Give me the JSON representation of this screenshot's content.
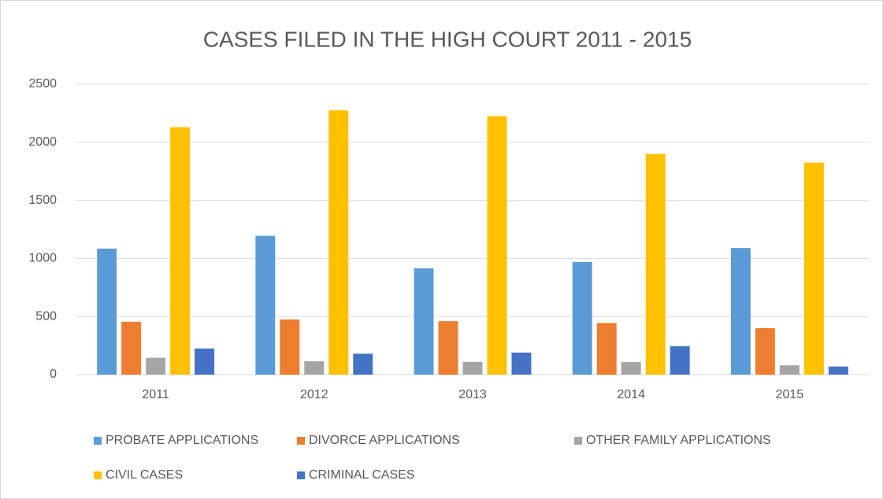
{
  "chart_data": {
    "type": "bar",
    "title": "CASES FILED IN THE HIGH COURT 2011 - 2015",
    "categories": [
      "2011",
      "2012",
      "2013",
      "2014",
      "2015"
    ],
    "series": [
      {
        "name": "PROBATE APPLICATIONS",
        "color": "#5b9bd5",
        "values": [
          1085,
          1195,
          915,
          970,
          1090
        ]
      },
      {
        "name": "DIVORCE APPLICATIONS",
        "color": "#ed7d31",
        "values": [
          455,
          475,
          460,
          445,
          400
        ]
      },
      {
        "name": "OTHER FAMILY APPLICATIONS",
        "color": "#a5a5a5",
        "values": [
          145,
          115,
          110,
          108,
          80
        ]
      },
      {
        "name": "CIVIL CASES",
        "color": "#ffc000",
        "values": [
          2130,
          2275,
          2225,
          1900,
          1825
        ]
      },
      {
        "name": "CRIMINAL CASES",
        "color": "#4472c4",
        "values": [
          225,
          180,
          190,
          245,
          70
        ]
      }
    ],
    "ylim": [
      0,
      2500
    ],
    "yticks": [
      0,
      500,
      1000,
      1500,
      2000,
      2500
    ],
    "grid": true,
    "legend": "bottom"
  }
}
